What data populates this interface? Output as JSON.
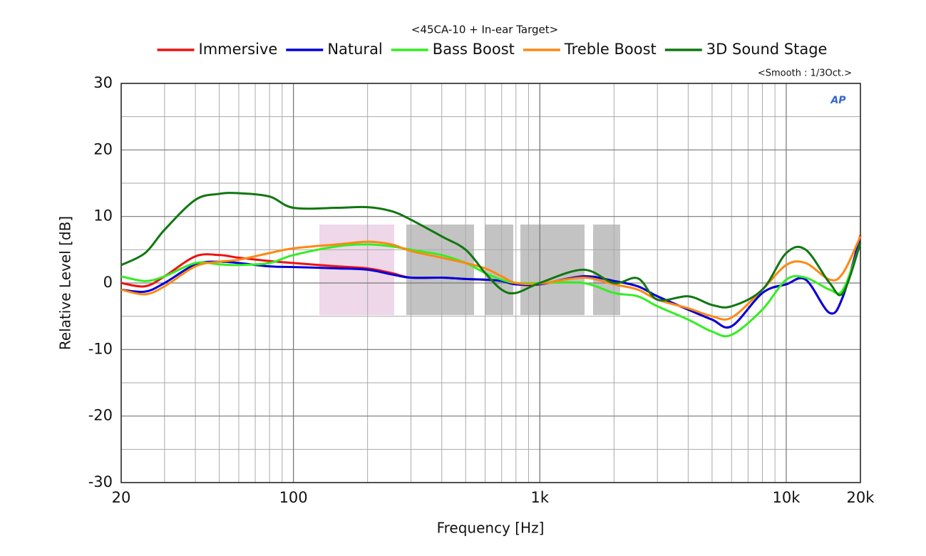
{
  "chart_data": {
    "type": "line",
    "title": "<45CA-10 + In-ear Target>",
    "subtitle": "<Smooth : 1/3Oct.>",
    "logo": "AP",
    "x_label": "Frequency [Hz]",
    "y_label": "Relative Level [dB]",
    "x": [
      20,
      25,
      30,
      40,
      50,
      60,
      80,
      100,
      150,
      200,
      250,
      300,
      400,
      500,
      600,
      700,
      800,
      1000,
      1500,
      2000,
      2500,
      3000,
      4000,
      5000,
      6000,
      8000,
      10000,
      12000,
      15000,
      17000,
      20000
    ],
    "xscale": "log",
    "xlim": [
      20,
      20000
    ],
    "xticks": [
      20,
      100,
      {
        "value": 1000,
        "label": "1k"
      },
      {
        "value": 10000,
        "label": "10k"
      },
      {
        "value": 20000,
        "label": "20k"
      }
    ],
    "ylim": [
      -30,
      30
    ],
    "yticks": [
      -30,
      -20,
      -10,
      0,
      10,
      20,
      30
    ],
    "grid": true,
    "legend": "top",
    "series": [
      {
        "name": "Immersive",
        "color": "#ee1111",
        "values": [
          0,
          -0.5,
          1,
          4,
          4.2,
          3.8,
          3.3,
          3,
          2.5,
          2.2,
          1.5,
          0.8,
          0.8,
          0.6,
          0.5,
          0.3,
          -0.2,
          -0.2,
          1,
          0.3,
          -0.5,
          -2,
          -4,
          -5.5,
          -6.5,
          -1.5,
          -0.2,
          0.5,
          -4.5,
          -2,
          7.2
        ]
      },
      {
        "name": "Natural",
        "color": "#0000dd",
        "values": [
          -1,
          -1.3,
          0,
          2.8,
          3.2,
          3,
          2.5,
          2.4,
          2.2,
          2,
          1.3,
          0.8,
          0.8,
          0.6,
          0.5,
          0.3,
          -0.2,
          -0.2,
          1,
          0.3,
          -0.5,
          -2,
          -4,
          -5.5,
          -6.5,
          -1.5,
          -0.2,
          0.5,
          -4.5,
          -2,
          7
        ]
      },
      {
        "name": "Bass Boost",
        "color": "#33ee22",
        "values": [
          1,
          0.3,
          1,
          3,
          2.8,
          2.7,
          3,
          4.2,
          5.5,
          5.8,
          5.5,
          5,
          4.2,
          3,
          1.5,
          0.5,
          0,
          0,
          0,
          -1.5,
          -2,
          -3.5,
          -5.5,
          -7.3,
          -7.8,
          -4,
          0.5,
          0.8,
          -1,
          -1,
          6
        ]
      },
      {
        "name": "Treble Boost",
        "color": "#ff8811",
        "values": [
          -1,
          -1.7,
          -0.5,
          2.5,
          3.2,
          3.5,
          4.5,
          5.2,
          5.8,
          6.2,
          5.8,
          4.8,
          3.8,
          3,
          2.2,
          1,
          0,
          -0.1,
          0.8,
          -0.2,
          -1,
          -2.5,
          -3.8,
          -5,
          -5.2,
          -1,
          2.7,
          3,
          0.5,
          1.5,
          7
        ]
      },
      {
        "name": "3D Sound Stage",
        "color": "#117711",
        "values": [
          2.7,
          4.5,
          8,
          12.5,
          13.4,
          13.5,
          13,
          11.3,
          11.3,
          11.4,
          10.8,
          9.5,
          7,
          5,
          1.5,
          -1,
          -1.5,
          0,
          2,
          0,
          0.7,
          -2.5,
          -2,
          -3.3,
          -3.5,
          -1,
          4.5,
          5,
          0,
          -1.5,
          6
        ]
      }
    ]
  }
}
